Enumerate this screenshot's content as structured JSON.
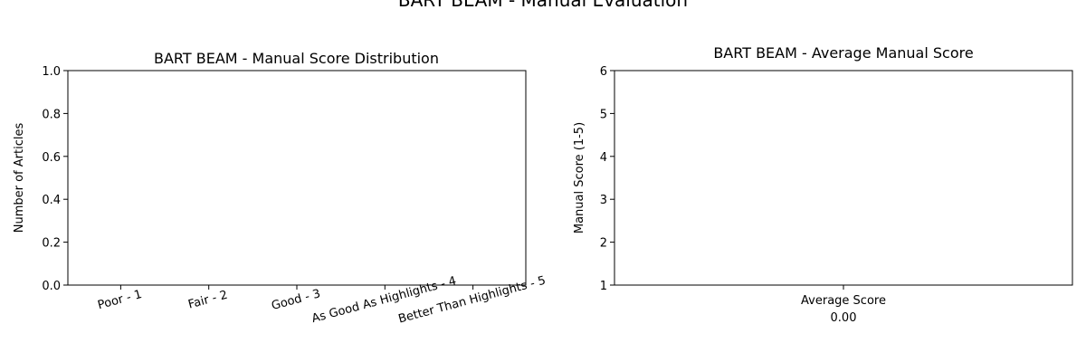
{
  "figure": {
    "suptitle": "BART BEAM - Manual Evaluation"
  },
  "chart_data": [
    {
      "type": "bar",
      "title": "BART BEAM - Manual Score Distribution",
      "xlabel": "",
      "ylabel": "Number of Articles",
      "categories": [
        "Poor - 1",
        "Fair - 2",
        "Good - 3",
        "As Good As Highlights - 4",
        "Better Than Highlights - 5"
      ],
      "values": [
        0,
        0,
        0,
        0,
        0
      ],
      "ylim": [
        0,
        1.0
      ],
      "yticks": [
        "0.0",
        "0.2",
        "0.4",
        "0.6",
        "0.8",
        "1.0"
      ],
      "grid": false
    },
    {
      "type": "bar",
      "title": "BART BEAM - Average Manual Score",
      "xlabel": "",
      "ylabel": "Manual Score (1-5)",
      "categories": [
        "Average Score"
      ],
      "values": [
        0
      ],
      "value_labels": [
        "0.00"
      ],
      "ylim": [
        1,
        6
      ],
      "yticks": [
        "1",
        "2",
        "3",
        "4",
        "5",
        "6"
      ],
      "grid": false
    }
  ]
}
